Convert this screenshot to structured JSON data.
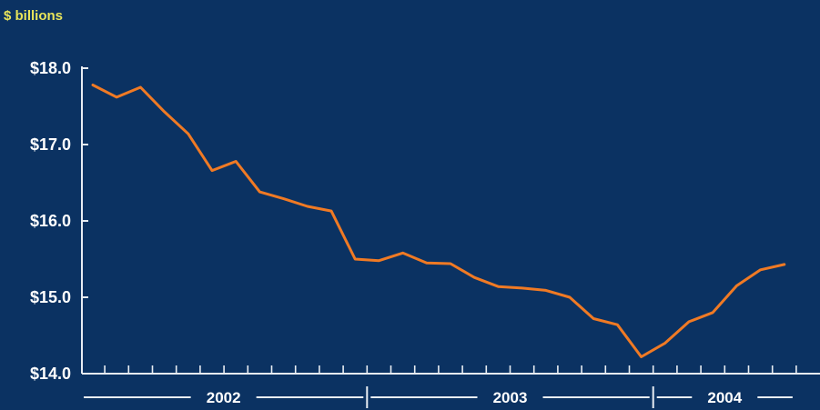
{
  "colors": {
    "background": "#0b3262",
    "axis": "#e8edf3",
    "line": "#f07a24",
    "unit_text": "#e9e55a",
    "text": "#ffffff"
  },
  "chart_data": {
    "type": "line",
    "title": "",
    "ylabel": "$ billions",
    "xlabel": "",
    "ylim": [
      14.0,
      18.0
    ],
    "y_ticks": [
      "$18.0",
      "$17.0",
      "$16.0",
      "$15.0",
      "$14.0"
    ],
    "y_tick_values": [
      18.0,
      17.0,
      16.0,
      15.0,
      14.0
    ],
    "grid": false,
    "legend": "none",
    "x_groups": [
      {
        "label": "2002",
        "months": 12
      },
      {
        "label": "2003",
        "months": 12
      },
      {
        "label": "2004",
        "months": 6
      }
    ],
    "x": [
      "Jan 2002",
      "Feb 2002",
      "Mar 2002",
      "Apr 2002",
      "May 2002",
      "Jun 2002",
      "Jul 2002",
      "Aug 2002",
      "Sep 2002",
      "Oct 2002",
      "Nov 2002",
      "Dec 2002",
      "Jan 2003",
      "Feb 2003",
      "Mar 2003",
      "Apr 2003",
      "May 2003",
      "Jun 2003",
      "Jul 2003",
      "Aug 2003",
      "Sep 2003",
      "Oct 2003",
      "Nov 2003",
      "Dec 2003",
      "Jan 2004",
      "Feb 2004",
      "Mar 2004",
      "Apr 2004",
      "May 2004",
      "Jun 2004"
    ],
    "series": [
      {
        "values": [
          17.78,
          17.62,
          17.75,
          17.43,
          17.14,
          16.66,
          16.78,
          16.38,
          16.29,
          16.19,
          16.13,
          15.5,
          15.48,
          15.58,
          15.45,
          15.44,
          15.26,
          15.14,
          15.12,
          15.09,
          15.0,
          14.72,
          14.64,
          14.22,
          14.4,
          14.68,
          14.8,
          15.15,
          15.36,
          15.43
        ]
      }
    ]
  }
}
